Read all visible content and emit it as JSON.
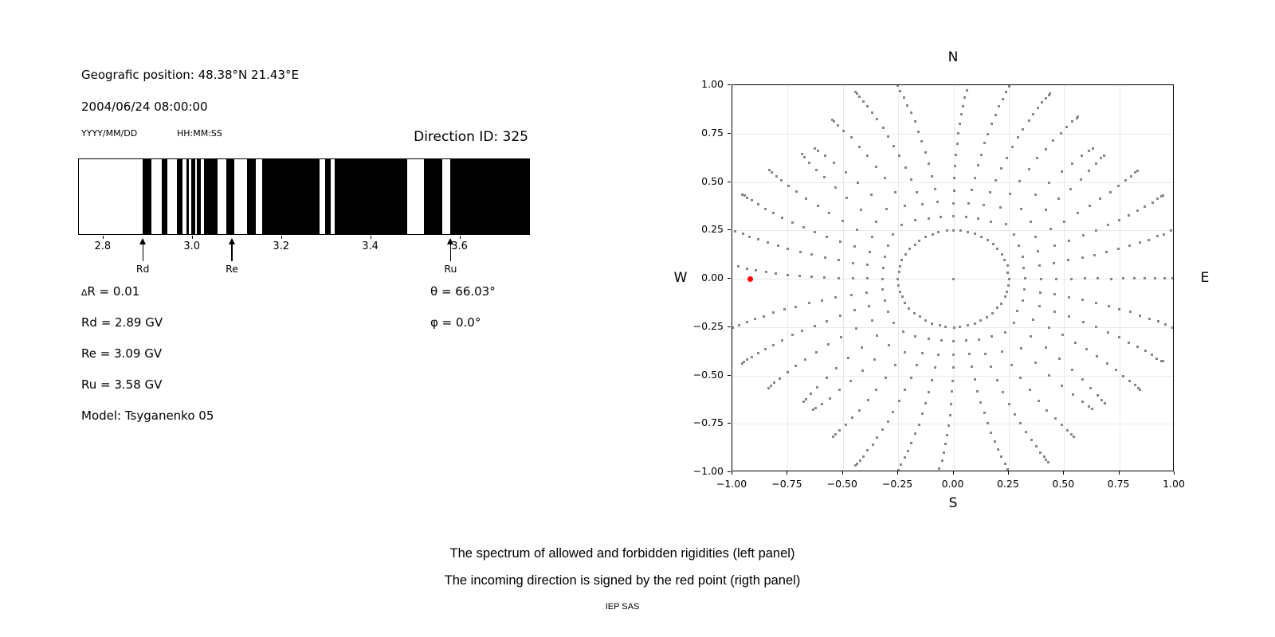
{
  "header": {
    "position_line": "Geografic position: 48.38°N 21.43°E",
    "datetime_line": "2004/06/24 08:00:00",
    "date_format_label": "YYYY/MM/DD",
    "time_format_label": "HH:MM:SS",
    "direction_id_line": "Direction ID: 325"
  },
  "caption": {
    "line1": "The spectrum of allowed and forbidden rigidities (left panel)",
    "line2": "The incoming direction is signed by the red point (rigth panel)",
    "credit": "IEP SAS"
  },
  "colors": {
    "forbidden": "#000000",
    "allowed": "#ffffff",
    "dot_gray": "#878787",
    "red_point": "#ff0000",
    "grid": "#e9e9e9"
  },
  "chart_data": [
    {
      "type": "bands",
      "description": "Spectrum of allowed (white) and forbidden (black) rigidities",
      "xlim": [
        2.745,
        3.758
      ],
      "xticks": [
        2.8,
        3.0,
        3.2,
        3.4,
        3.6
      ],
      "xtick_labels": [
        "2.8",
        "3.0",
        "3.2",
        "3.4",
        "3.6"
      ],
      "forbidden_bands_gv": [
        [
          2.888,
          2.908
        ],
        [
          2.93,
          2.943
        ],
        [
          2.965,
          2.977
        ],
        [
          2.986,
          2.992
        ],
        [
          2.996,
          3.005
        ],
        [
          3.01,
          3.019
        ],
        [
          3.025,
          3.056
        ],
        [
          3.076,
          3.093
        ],
        [
          3.121,
          3.141
        ],
        [
          3.155,
          3.284
        ],
        [
          3.297,
          3.31
        ],
        [
          3.318,
          3.482
        ],
        [
          3.519,
          3.559
        ],
        [
          3.577,
          3.758
        ]
      ],
      "markers": [
        {
          "label": "Rd",
          "value_gv": 2.89
        },
        {
          "label": "Re",
          "value_gv": 3.09
        },
        {
          "label": "Ru",
          "value_gv": 3.58
        }
      ],
      "annotations": {
        "delta_r": "∆R = 0.01",
        "rd": "Rd = 2.89 GV",
        "re": "Re = 3.09 GV",
        "ru": "Ru = 3.58 GV",
        "model": "Model: Tsyganenko 05",
        "theta": "θ = 66.03°",
        "phi": "φ = 0.0°"
      }
    },
    {
      "type": "scatter",
      "description": "Asymptotic directions; incoming direction marked by red point",
      "xlim": [
        -1.0,
        1.0
      ],
      "ylim": [
        -1.0,
        1.0
      ],
      "grid": true,
      "xticks": [
        -1.0,
        -0.75,
        -0.5,
        -0.25,
        0.0,
        0.25,
        0.5,
        0.75,
        1.0
      ],
      "yticks": [
        -1.0,
        -0.75,
        -0.5,
        -0.25,
        0.0,
        0.25,
        0.5,
        0.75,
        1.0
      ],
      "xtick_labels": [
        "−1.00",
        "−0.75",
        "−0.50",
        "−0.25",
        "0.00",
        "0.25",
        "0.50",
        "0.75",
        "1.00"
      ],
      "ytick_labels": [
        "−1.00",
        "−0.75",
        "−0.50",
        "−0.25",
        "0.00",
        "0.25",
        "0.50",
        "0.75",
        "1.00"
      ],
      "compass": {
        "n": "N",
        "s": "S",
        "w": "W",
        "e": "E"
      },
      "red_point": {
        "x": -0.92,
        "y": 0.0
      },
      "center_dot": {
        "x": 0.0,
        "y": 0.0
      },
      "inner_ring": {
        "radius": 0.25,
        "dot_count": 48
      },
      "ray_model": {
        "start_r": 0.25,
        "tip_exponent": 1.6,
        "curve_deg": 4.5
      },
      "rays": [
        {
          "angle_deg": 0,
          "tip_r": 1.1
        },
        {
          "angle_deg": 10,
          "tip_r": 1.09
        },
        {
          "angle_deg": 20,
          "tip_r": 1.04
        },
        {
          "angle_deg": 30,
          "tip_r": 1.0
        },
        {
          "angle_deg": 40,
          "tip_r": 0.93
        },
        {
          "angle_deg": 50,
          "tip_r": 0.92
        },
        {
          "angle_deg": 60,
          "tip_r": 1.01
        },
        {
          "angle_deg": 70,
          "tip_r": 1.05
        },
        {
          "angle_deg": 80,
          "tip_r": 1.1
        },
        {
          "angle_deg": 90,
          "tip_r": 1.11
        },
        {
          "angle_deg": 100,
          "tip_r": 1.08
        },
        {
          "angle_deg": 110,
          "tip_r": 1.06
        },
        {
          "angle_deg": 120,
          "tip_r": 0.99
        },
        {
          "angle_deg": 130,
          "tip_r": 0.92
        },
        {
          "angle_deg": 140,
          "tip_r": 0.94
        },
        {
          "angle_deg": 150,
          "tip_r": 1.0
        },
        {
          "angle_deg": 160,
          "tip_r": 1.05
        },
        {
          "angle_deg": 170,
          "tip_r": 1.09
        },
        {
          "angle_deg": 180,
          "tip_r": 1.11
        },
        {
          "angle_deg": 190,
          "tip_r": 1.08
        },
        {
          "angle_deg": 200,
          "tip_r": 1.05
        },
        {
          "angle_deg": 210,
          "tip_r": 1.01
        },
        {
          "angle_deg": 220,
          "tip_r": 0.93
        },
        {
          "angle_deg": 230,
          "tip_r": 0.93
        },
        {
          "angle_deg": 240,
          "tip_r": 0.98
        },
        {
          "angle_deg": 250,
          "tip_r": 1.06
        },
        {
          "angle_deg": 260,
          "tip_r": 1.1
        },
        {
          "angle_deg": 270,
          "tip_r": 1.12
        },
        {
          "angle_deg": 280,
          "tip_r": 1.09
        },
        {
          "angle_deg": 290,
          "tip_r": 1.04
        },
        {
          "angle_deg": 300,
          "tip_r": 0.98
        },
        {
          "angle_deg": 310,
          "tip_r": 0.92
        },
        {
          "angle_deg": 320,
          "tip_r": 0.94
        },
        {
          "angle_deg": 330,
          "tip_r": 1.02
        },
        {
          "angle_deg": 340,
          "tip_r": 1.04
        },
        {
          "angle_deg": 350,
          "tip_r": 1.1
        }
      ]
    }
  ]
}
